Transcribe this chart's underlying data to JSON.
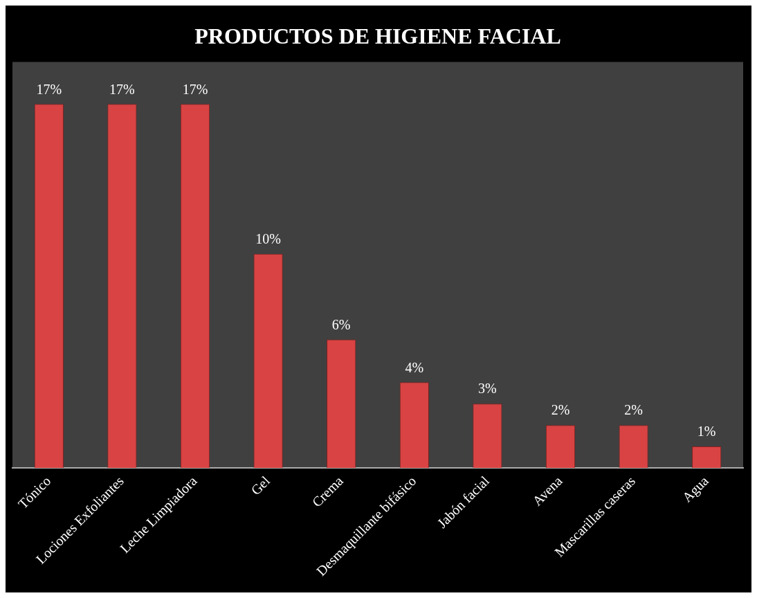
{
  "chart_data": {
    "type": "bar",
    "title": "PRODUCTOS DE HIGIENE FACIAL",
    "categories": [
      "Tónico",
      "Lociones Exfoliantes",
      "Leche Limpiadora",
      "Gel",
      "Crema",
      "Desmaquillante bifásico",
      "Jabón facial",
      "Avena",
      "Mascarillas caseras",
      "Agua"
    ],
    "values": [
      17,
      17,
      17,
      10,
      6,
      4,
      3,
      2,
      2,
      1
    ],
    "value_labels": [
      "17%",
      "17%",
      "17%",
      "10%",
      "6%",
      "4%",
      "3%",
      "2%",
      "2%",
      "1%"
    ],
    "color": "#d94343",
    "grid": false,
    "legend": false
  }
}
